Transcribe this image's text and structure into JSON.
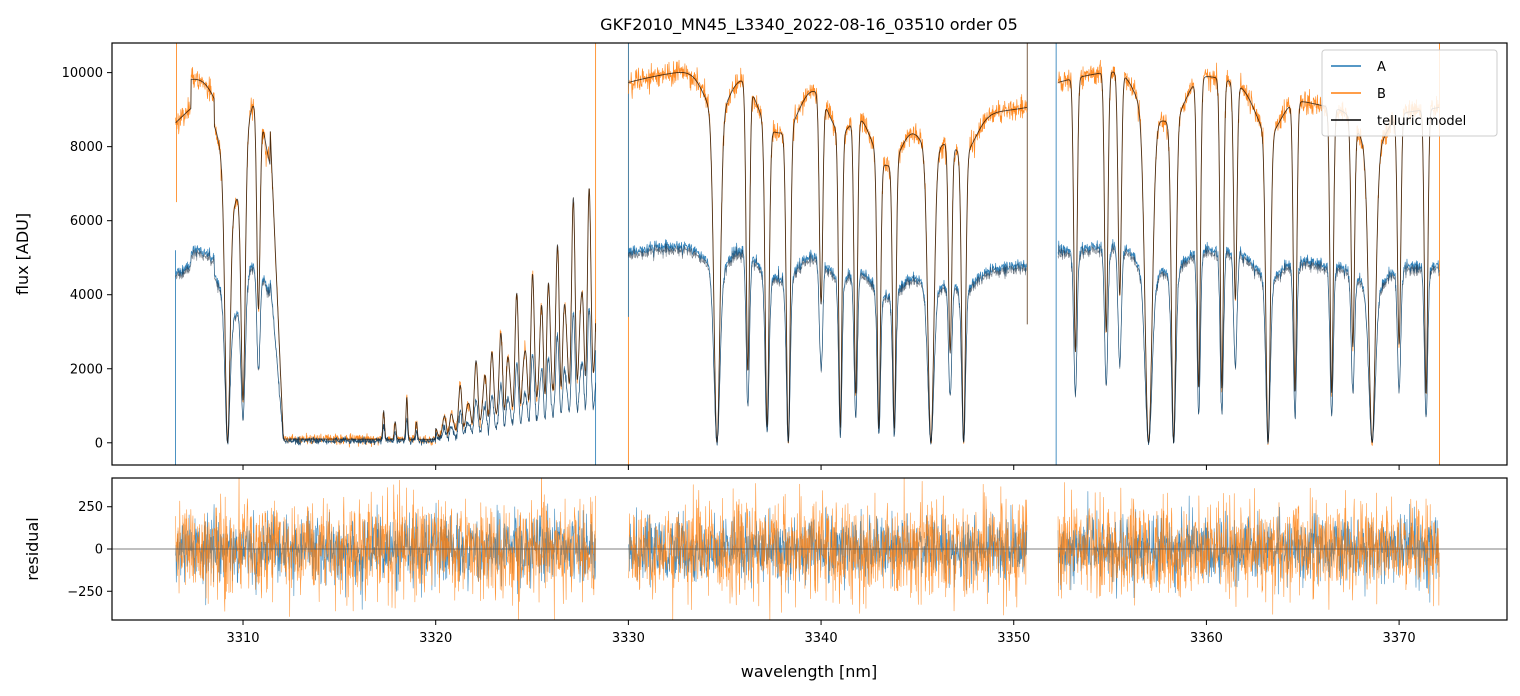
{
  "chart_data": [
    {
      "type": "line",
      "title": "GKF2010_MN45_L3340_2022-08-16_03510  order 05",
      "xlabel": "",
      "ylabel": "flux [ADU]",
      "xlim": [
        3303.2,
        3375.6
      ],
      "ylim": [
        -600,
        10800
      ],
      "x_ticks": [
        3310,
        3320,
        3330,
        3340,
        3350,
        3360,
        3370
      ],
      "y_ticks": [
        0,
        2000,
        4000,
        6000,
        8000,
        10000
      ],
      "y_tick_labels": [
        "0",
        "2000",
        "4000",
        "6000",
        "8000",
        "10000"
      ],
      "legend_position": "top-right",
      "segments": [
        [
          3306.5,
          3328.3
        ],
        [
          3330.0,
          3350.7
        ],
        [
          3352.3,
          3372.1
        ]
      ],
      "absorption_lines": [
        {
          "x": 3309.2,
          "depth": 1.0,
          "width": 0.18
        },
        {
          "x": 3310.0,
          "depth": 0.85,
          "width": 0.15
        },
        {
          "x": 3310.8,
          "depth": 0.6,
          "width": 0.12
        },
        {
          "x": 3334.6,
          "depth": 1.0,
          "width": 0.22
        },
        {
          "x": 3336.2,
          "depth": 0.8,
          "width": 0.12
        },
        {
          "x": 3337.2,
          "depth": 0.95,
          "width": 0.14
        },
        {
          "x": 3338.3,
          "depth": 1.0,
          "width": 0.14
        },
        {
          "x": 3340.0,
          "depth": 0.6,
          "width": 0.12
        },
        {
          "x": 3341.0,
          "depth": 0.95,
          "width": 0.12
        },
        {
          "x": 3341.8,
          "depth": 0.85,
          "width": 0.12
        },
        {
          "x": 3343.0,
          "depth": 0.95,
          "width": 0.12
        },
        {
          "x": 3343.8,
          "depth": 0.95,
          "width": 0.12
        },
        {
          "x": 3345.7,
          "depth": 1.0,
          "width": 0.22
        },
        {
          "x": 3346.7,
          "depth": 0.7,
          "width": 0.12
        },
        {
          "x": 3347.4,
          "depth": 1.0,
          "width": 0.14
        },
        {
          "x": 3353.2,
          "depth": 0.75,
          "width": 0.12
        },
        {
          "x": 3354.8,
          "depth": 0.7,
          "width": 0.12
        },
        {
          "x": 3355.5,
          "depth": 0.6,
          "width": 0.12
        },
        {
          "x": 3357.0,
          "depth": 1.0,
          "width": 0.26
        },
        {
          "x": 3358.3,
          "depth": 1.0,
          "width": 0.16
        },
        {
          "x": 3359.6,
          "depth": 0.85,
          "width": 0.12
        },
        {
          "x": 3360.8,
          "depth": 0.85,
          "width": 0.12
        },
        {
          "x": 3361.5,
          "depth": 0.6,
          "width": 0.12
        },
        {
          "x": 3363.2,
          "depth": 1.0,
          "width": 0.16
        },
        {
          "x": 3364.6,
          "depth": 0.85,
          "width": 0.12
        },
        {
          "x": 3366.5,
          "depth": 0.85,
          "width": 0.12
        },
        {
          "x": 3367.6,
          "depth": 0.7,
          "width": 0.12
        },
        {
          "x": 3368.6,
          "depth": 1.0,
          "width": 0.24
        },
        {
          "x": 3370.0,
          "depth": 0.7,
          "width": 0.12
        },
        {
          "x": 3371.4,
          "depth": 0.85,
          "width": 0.12
        }
      ],
      "series": [
        {
          "name": "A",
          "color": "#1f77b4",
          "continuum": 5200
        },
        {
          "name": "B",
          "color": "#ff7f0e",
          "continuum": 9800
        },
        {
          "name": "telluric model",
          "color": "#000000"
        }
      ]
    },
    {
      "type": "line",
      "title": "",
      "xlabel": "wavelength [nm]",
      "ylabel": "residual",
      "xlim": [
        3303.2,
        3375.6
      ],
      "ylim": [
        -420,
        420
      ],
      "x_ticks": [
        3310,
        3320,
        3330,
        3340,
        3350,
        3360,
        3370
      ],
      "x_tick_labels": [
        "3310",
        "3320",
        "3330",
        "3340",
        "3350",
        "3360",
        "3370"
      ],
      "y_ticks": [
        -250,
        0,
        250
      ],
      "y_tick_labels": [
        "−250",
        "0",
        "250"
      ],
      "series": [
        {
          "name": "A",
          "color": "#1f77b4"
        },
        {
          "name": "B",
          "color": "#ff7f0e"
        }
      ]
    }
  ]
}
